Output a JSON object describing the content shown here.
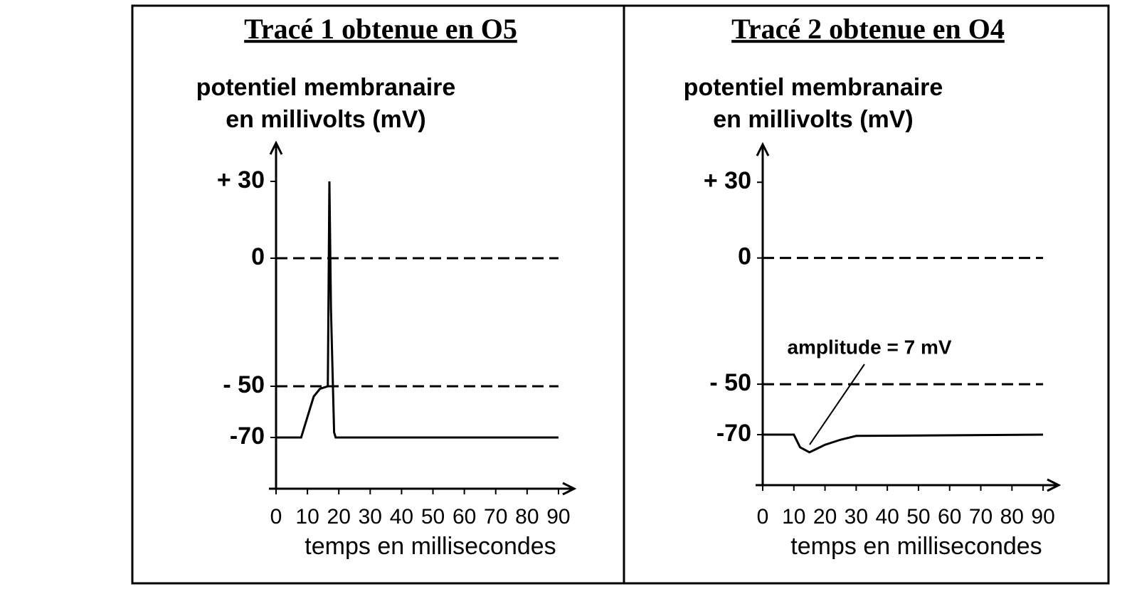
{
  "chart_data": [
    {
      "type": "line",
      "title": "Tracé 1 obtenue en O5",
      "y_label": [
        "potentiel membranaire",
        "en millivolts (mV)"
      ],
      "x_label": "temps en millisecondes",
      "x": [
        0,
        8,
        10,
        12,
        14,
        16.5,
        17,
        17.5,
        18.5,
        19,
        90
      ],
      "values": [
        -70,
        -70,
        -62,
        -54,
        -51,
        -50,
        30,
        -20,
        -68,
        -70,
        -70
      ],
      "color": "#000000",
      "xlim": [
        0,
        95
      ],
      "xticks": [
        0,
        10,
        20,
        30,
        40,
        50,
        60,
        70,
        80,
        90
      ],
      "ylim": [
        -90,
        45
      ],
      "yticks": [
        {
          "value": 30,
          "label": "+ 30"
        },
        0,
        {
          "value": -50,
          "label": "- 50"
        },
        -70
      ],
      "hlines": [
        0,
        -50
      ]
    },
    {
      "type": "line",
      "title": "Tracé 2 obtenue en O4",
      "y_label": [
        "potentiel membranaire",
        "en millivolts (mV)"
      ],
      "x_label": "temps en millisecondes",
      "annotation": "amplitude = 7 mV",
      "x": [
        0,
        10,
        12,
        15,
        20,
        25,
        30,
        90
      ],
      "values": [
        -70,
        -70,
        -75,
        -77,
        -74,
        -72,
        -70.5,
        -70
      ],
      "color": "#000000",
      "xlim": [
        0,
        95
      ],
      "xticks": [
        0,
        10,
        20,
        30,
        40,
        50,
        60,
        70,
        80,
        90
      ],
      "ylim": [
        -90,
        45
      ],
      "yticks": [
        {
          "value": 30,
          "label": "+ 30"
        },
        0,
        {
          "value": -50,
          "label": "- 50"
        },
        -70
      ],
      "hlines": [
        0,
        -50
      ]
    }
  ]
}
